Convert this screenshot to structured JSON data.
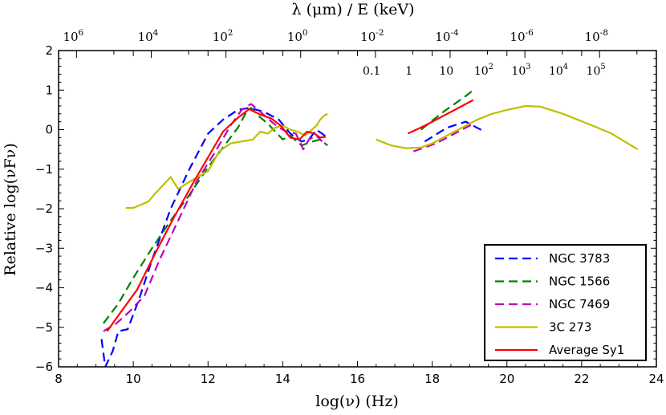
{
  "chart_data": {
    "type": "line",
    "xlabel": "log(ν) (Hz)",
    "ylabel": "Relative log(νFν)",
    "top_xlabel": "λ (μm) / E (keV)",
    "xlim": [
      8,
      24
    ],
    "ylim": [
      -6,
      2
    ],
    "xticks": [
      8,
      10,
      12,
      14,
      16,
      18,
      20,
      22,
      24
    ],
    "xtick_labels": [
      "8",
      "10",
      "12",
      "14",
      "16",
      "18",
      "20",
      "22",
      "24"
    ],
    "yticks": [
      -6,
      -5,
      -4,
      -3,
      -2,
      -1,
      0,
      1,
      2
    ],
    "ytick_labels": [
      "−6",
      "−5",
      "−4",
      "−3",
      "−2",
      "−1",
      "0",
      "1",
      "2"
    ],
    "top_ticks": [
      {
        "base": "10",
        "exp": "6",
        "log_nu": 8.48
      },
      {
        "base": "10",
        "exp": "4",
        "log_nu": 10.48
      },
      {
        "base": "10",
        "exp": "2",
        "log_nu": 12.48
      },
      {
        "base": "10",
        "exp": "0",
        "log_nu": 14.48
      },
      {
        "base": "10",
        "exp": "-2",
        "log_nu": 16.48
      },
      {
        "base": "10",
        "exp": "-4",
        "log_nu": 18.48
      },
      {
        "base": "10",
        "exp": "-6",
        "log_nu": 20.48
      },
      {
        "base": "10",
        "exp": "-8",
        "log_nu": 22.48
      }
    ],
    "kev_labels": [
      {
        "base": "0.1",
        "exp": "",
        "log_nu": 16.38
      },
      {
        "base": "1",
        "exp": "",
        "log_nu": 17.38
      },
      {
        "base": "10",
        "exp": "",
        "log_nu": 18.38
      },
      {
        "base": "10",
        "exp": "2",
        "log_nu": 19.38
      },
      {
        "base": "10",
        "exp": "3",
        "log_nu": 20.38
      },
      {
        "base": "10",
        "exp": "4",
        "log_nu": 21.38
      },
      {
        "base": "10",
        "exp": "5",
        "log_nu": 22.38
      }
    ],
    "legend_position": "lower-right",
    "series": [
      {
        "name": "NGC 3783",
        "color": "#0000ff",
        "style": "dashed",
        "segments": [
          [
            [
              9.15,
              -5.3
            ],
            [
              9.25,
              -6.0
            ],
            [
              9.45,
              -5.6
            ],
            [
              9.6,
              -5.1
            ],
            [
              9.85,
              -5.05
            ],
            [
              10.15,
              -4.3
            ],
            [
              10.5,
              -3.3
            ],
            [
              11.0,
              -2.0
            ],
            [
              11.5,
              -1.0
            ],
            [
              12.0,
              -0.1
            ],
            [
              12.4,
              0.25
            ],
            [
              12.8,
              0.5
            ],
            [
              13.1,
              0.55
            ],
            [
              13.5,
              0.45
            ],
            [
              13.9,
              0.25
            ],
            [
              14.2,
              -0.1
            ],
            [
              14.5,
              -0.3
            ],
            [
              14.7,
              -0.25
            ],
            [
              14.9,
              0.0
            ],
            [
              15.05,
              -0.1
            ],
            [
              15.2,
              -0.2
            ]
          ],
          [
            [
              17.8,
              -0.3
            ],
            [
              18.4,
              0.05
            ],
            [
              18.9,
              0.2
            ],
            [
              19.1,
              0.1
            ],
            [
              19.4,
              -0.05
            ]
          ]
        ]
      },
      {
        "name": "NGC 1566",
        "color": "#008000",
        "style": "dashed",
        "segments": [
          [
            [
              9.2,
              -4.9
            ],
            [
              9.6,
              -4.4
            ],
            [
              10.0,
              -3.75
            ],
            [
              10.5,
              -3.0
            ],
            [
              11.0,
              -2.3
            ],
            [
              11.5,
              -1.65
            ],
            [
              12.0,
              -0.95
            ],
            [
              12.4,
              -0.45
            ],
            [
              12.8,
              0.05
            ],
            [
              13.0,
              0.4
            ],
            [
              13.15,
              0.55
            ],
            [
              13.35,
              0.35
            ],
            [
              13.6,
              0.15
            ],
            [
              13.8,
              -0.05
            ],
            [
              14.0,
              -0.25
            ],
            [
              14.2,
              -0.15
            ],
            [
              14.5,
              -0.4
            ],
            [
              14.8,
              -0.3
            ],
            [
              15.0,
              -0.25
            ],
            [
              15.2,
              -0.4
            ]
          ],
          [
            [
              17.7,
              0.0
            ],
            [
              18.3,
              0.45
            ],
            [
              18.9,
              0.85
            ],
            [
              19.1,
              1.0
            ]
          ]
        ]
      },
      {
        "name": "NGC 7469",
        "color": "#bf00bf",
        "style": "dashed",
        "segments": [
          [
            [
              9.2,
              -5.1
            ],
            [
              9.55,
              -4.9
            ],
            [
              9.9,
              -4.6
            ],
            [
              10.3,
              -4.2
            ],
            [
              10.7,
              -3.3
            ],
            [
              11.2,
              -2.3
            ],
            [
              11.7,
              -1.3
            ],
            [
              12.2,
              -0.55
            ],
            [
              12.6,
              0.1
            ],
            [
              12.9,
              0.5
            ],
            [
              13.15,
              0.65
            ],
            [
              13.4,
              0.45
            ],
            [
              13.7,
              0.2
            ],
            [
              13.9,
              0.05
            ],
            [
              14.1,
              -0.05
            ],
            [
              14.35,
              -0.1
            ],
            [
              14.55,
              -0.5
            ],
            [
              14.7,
              -0.25
            ],
            [
              14.9,
              -0.15
            ],
            [
              15.05,
              -0.3
            ]
          ],
          [
            [
              17.5,
              -0.55
            ],
            [
              18.1,
              -0.35
            ],
            [
              18.7,
              -0.05
            ],
            [
              19.1,
              0.15
            ]
          ]
        ]
      },
      {
        "name": "3C 273",
        "color": "#bfbf00",
        "style": "solid",
        "segments": [
          [
            [
              9.8,
              -1.98
            ],
            [
              10.0,
              -1.98
            ],
            [
              10.2,
              -1.9
            ],
            [
              10.4,
              -1.82
            ],
            [
              10.6,
              -1.6
            ],
            [
              11.0,
              -1.2
            ],
            [
              11.2,
              -1.5
            ],
            [
              11.5,
              -1.32
            ],
            [
              12.0,
              -1.05
            ],
            [
              12.3,
              -0.55
            ],
            [
              12.6,
              -0.35
            ],
            [
              13.2,
              -0.25
            ],
            [
              13.4,
              -0.05
            ],
            [
              13.6,
              -0.1
            ],
            [
              13.8,
              0.05
            ],
            [
              14.0,
              0.1
            ],
            [
              14.2,
              0.0
            ],
            [
              14.4,
              -0.05
            ],
            [
              14.6,
              -0.15
            ],
            [
              14.9,
              0.1
            ],
            [
              15.0,
              0.25
            ],
            [
              15.1,
              0.35
            ],
            [
              15.2,
              0.4
            ]
          ],
          [
            [
              16.5,
              -0.25
            ],
            [
              16.9,
              -0.4
            ],
            [
              17.3,
              -0.47
            ],
            [
              17.7,
              -0.45
            ],
            [
              18.0,
              -0.35
            ],
            [
              18.5,
              -0.1
            ],
            [
              18.9,
              0.1
            ],
            [
              19.2,
              0.25
            ],
            [
              19.6,
              0.4
            ],
            [
              20.0,
              0.5
            ],
            [
              20.5,
              0.6
            ],
            [
              20.9,
              0.58
            ],
            [
              21.5,
              0.4
            ],
            [
              22.3,
              0.1
            ],
            [
              22.8,
              -0.1
            ],
            [
              23.5,
              -0.5
            ]
          ]
        ]
      },
      {
        "name": "Average Sy1",
        "color": "#ff0000",
        "style": "solid",
        "segments": [
          [
            [
              9.3,
              -5.1
            ],
            [
              9.6,
              -4.7
            ],
            [
              10.1,
              -4.05
            ],
            [
              10.6,
              -3.1
            ],
            [
              11.1,
              -2.2
            ],
            [
              11.6,
              -1.35
            ],
            [
              12.0,
              -0.7
            ],
            [
              12.4,
              -0.05
            ],
            [
              12.8,
              0.3
            ],
            [
              13.1,
              0.52
            ],
            [
              13.4,
              0.38
            ],
            [
              13.7,
              0.28
            ],
            [
              13.95,
              0.1
            ],
            [
              14.2,
              -0.2
            ],
            [
              14.45,
              -0.25
            ],
            [
              14.65,
              -0.05
            ],
            [
              14.85,
              -0.1
            ],
            [
              15.0,
              -0.2
            ],
            [
              15.15,
              -0.18
            ]
          ],
          [
            [
              17.35,
              -0.1
            ],
            [
              17.8,
              0.1
            ],
            [
              18.3,
              0.35
            ],
            [
              18.8,
              0.6
            ],
            [
              19.1,
              0.75
            ]
          ]
        ]
      }
    ]
  }
}
